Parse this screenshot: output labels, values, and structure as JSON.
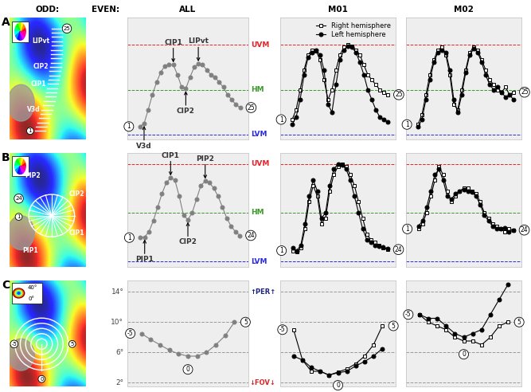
{
  "headers": [
    "ODD:",
    "EVEN:"
  ],
  "maps": [
    {
      "row": "A",
      "labels": [
        "V3d",
        "CIP1",
        "CIP2",
        "LIPvt"
      ],
      "points": [
        "1",
        "25"
      ]
    },
    {
      "row": "B",
      "labels": [
        "PIP2",
        "CIP2",
        "CIP1",
        "PIP1"
      ],
      "points": [
        "1",
        "24"
      ]
    },
    {
      "row": "C",
      "labels": [
        "40°",
        "0°"
      ],
      "points": [
        "-5",
        "0",
        "5"
      ]
    }
  ],
  "chart_data": [
    {
      "type": "line",
      "row": "A",
      "column": "ALL",
      "x": [
        1,
        2,
        3,
        4,
        5,
        6,
        7,
        8,
        9,
        10,
        11,
        12,
        13,
        14,
        15,
        16,
        17,
        18,
        19,
        20,
        21,
        22,
        23,
        24,
        25
      ],
      "xlim": [
        -2,
        27
      ],
      "ylim": [
        -100,
        145
      ],
      "tick_labels": false,
      "reference_lines": [
        {
          "value": 90,
          "label": "UVM",
          "color": "#e8222a"
        },
        {
          "value": 0,
          "label": "HM",
          "color": "#3a9a2a"
        },
        {
          "value": -90,
          "label": "LVM",
          "color": "#2a2ae0"
        }
      ],
      "series": [
        {
          "color": "#808080",
          "marker": "filled_circle",
          "line_style": "solid",
          "values": [
            -74,
            -68,
            -40,
            -10,
            15,
            35,
            48,
            50,
            50,
            30,
            5,
            2,
            25,
            45,
            52,
            50,
            40,
            30,
            25,
            15,
            5,
            -10,
            -20,
            -30,
            -36
          ]
        }
      ],
      "point_labels": [
        {
          "x": 1,
          "label": "1"
        },
        {
          "x": 25,
          "label": "25"
        }
      ],
      "annotations": [
        {
          "x": 2,
          "text": "V3d",
          "side": "below"
        },
        {
          "x": 9,
          "text": "CIP1",
          "side": "above"
        },
        {
          "x": 12,
          "text": "CIP2",
          "side": "below"
        },
        {
          "x": 15,
          "text": "LIPvt",
          "side": "above"
        }
      ]
    },
    {
      "type": "line",
      "row": "A",
      "column": "M01",
      "x": [
        1,
        2,
        3,
        4,
        5,
        6,
        7,
        8,
        9,
        10,
        11,
        12,
        13,
        14,
        15,
        16,
        17,
        18,
        19,
        20,
        21,
        22,
        23,
        24,
        25
      ],
      "xlim": [
        -2,
        27
      ],
      "ylim": [
        -100,
        145
      ],
      "tick_labels": false,
      "legend": "upper right",
      "reference_lines": [
        {
          "value": 90,
          "color": "#e8222a"
        },
        {
          "value": 0,
          "color": "#3a9a2a"
        },
        {
          "value": -90,
          "color": "#2a2ae0"
        }
      ],
      "series": [
        {
          "name": "Right hemisphere",
          "color": "#000000",
          "marker": "open_square",
          "line_style": "solid",
          "values": [
            -60,
            -40,
            0,
            40,
            70,
            80,
            78,
            60,
            20,
            -20,
            0,
            40,
            70,
            85,
            90,
            88,
            80,
            70,
            50,
            30,
            20,
            10,
            0,
            -5,
            -10
          ]
        },
        {
          "name": "Left hemisphere",
          "color": "#000000",
          "marker": "filled_circle",
          "line_style": "solid",
          "values": [
            -70,
            -55,
            -20,
            30,
            65,
            75,
            80,
            70,
            40,
            -30,
            -45,
            10,
            60,
            80,
            88,
            85,
            75,
            55,
            30,
            0,
            -20,
            -40,
            -55,
            -60,
            -65
          ]
        }
      ],
      "point_labels": [
        {
          "x": 1,
          "label": "1"
        },
        {
          "x": 25,
          "label": "25"
        }
      ]
    },
    {
      "type": "line",
      "row": "A",
      "column": "M02",
      "x": [
        1,
        2,
        3,
        4,
        5,
        6,
        7,
        8,
        9,
        10,
        11,
        12,
        13,
        14,
        15,
        16,
        17,
        18,
        19,
        20,
        21,
        22,
        23,
        24,
        25
      ],
      "xlim": [
        -2,
        27
      ],
      "ylim": [
        -100,
        145
      ],
      "tick_labels": false,
      "reference_lines": [
        {
          "value": 90,
          "color": "#e8222a"
        },
        {
          "value": 0,
          "color": "#3a9a2a"
        },
        {
          "value": -90,
          "color": "#2a2ae0"
        }
      ],
      "series": [
        {
          "color": "#000000",
          "marker": "open_square",
          "line_style": "solid",
          "values": [
            -70,
            -50,
            -10,
            30,
            60,
            80,
            85,
            70,
            30,
            -30,
            -40,
            0,
            40,
            75,
            85,
            80,
            60,
            40,
            20,
            10,
            0,
            -5,
            5,
            -10,
            -5
          ]
        },
        {
          "color": "#000000",
          "marker": "filled_circle",
          "line_style": "solid",
          "values": [
            -75,
            -60,
            -20,
            20,
            55,
            75,
            80,
            75,
            40,
            -20,
            -45,
            -10,
            35,
            70,
            82,
            75,
            55,
            30,
            10,
            0,
            5,
            -5,
            -15,
            -10,
            -20
          ]
        }
      ],
      "point_labels": [
        {
          "x": 1,
          "label": "1"
        },
        {
          "x": 25,
          "label": "25"
        }
      ]
    },
    {
      "type": "line",
      "row": "B",
      "column": "ALL",
      "x": [
        1,
        2,
        3,
        4,
        5,
        6,
        7,
        8,
        9,
        10,
        11,
        12,
        13,
        14,
        15,
        16,
        17,
        18,
        19,
        20,
        21,
        22,
        23,
        24
      ],
      "xlim": [
        -2,
        26
      ],
      "ylim": [
        -100,
        110
      ],
      "tick_labels": false,
      "reference_lines": [
        {
          "value": 90,
          "label": "UVM",
          "color": "#e8222a"
        },
        {
          "value": 0,
          "label": "HM",
          "color": "#3a9a2a"
        },
        {
          "value": -90,
          "label": "LVM",
          "color": "#2a2ae0"
        }
      ],
      "series": [
        {
          "color": "#808080",
          "marker": "filled_circle",
          "line_style": "solid",
          "values": [
            -46,
            -45,
            -35,
            -15,
            10,
            35,
            55,
            64,
            60,
            30,
            -5,
            -13,
            0,
            25,
            50,
            58,
            55,
            45,
            30,
            10,
            -10,
            -25,
            -35,
            -42
          ]
        }
      ],
      "point_labels": [
        {
          "x": 1,
          "label": "1"
        },
        {
          "x": 24,
          "label": "24"
        }
      ],
      "annotations": [
        {
          "x": 2,
          "text": "PIP1",
          "side": "below"
        },
        {
          "x": 8,
          "text": "CIP1",
          "side": "above"
        },
        {
          "x": 12,
          "text": "CIP2",
          "side": "below"
        },
        {
          "x": 16,
          "text": "PIP2",
          "side": "above"
        }
      ]
    },
    {
      "type": "line",
      "row": "B",
      "column": "M01",
      "x": [
        1,
        2,
        3,
        4,
        5,
        6,
        7,
        8,
        9,
        10,
        11,
        12,
        13,
        14,
        15,
        16,
        17,
        18,
        19,
        20,
        21,
        22,
        23,
        24
      ],
      "xlim": [
        -2,
        26
      ],
      "ylim": [
        -100,
        110
      ],
      "tick_labels": false,
      "reference_lines": [
        {
          "value": 90,
          "color": "#e8222a"
        },
        {
          "value": 0,
          "color": "#3a9a2a"
        },
        {
          "value": -90,
          "color": "#2a2ae0"
        }
      ],
      "series": [
        {
          "color": "#000000",
          "marker": "open_square",
          "line_style": "solid",
          "values": [
            -70,
            -72,
            -65,
            -30,
            20,
            50,
            30,
            -20,
            -10,
            40,
            70,
            85,
            90,
            85,
            70,
            50,
            20,
            -10,
            -40,
            -50,
            -55,
            -60,
            -65,
            -68
          ]
        },
        {
          "color": "#000000",
          "marker": "filled_circle",
          "line_style": "solid",
          "values": [
            -65,
            -70,
            -60,
            -20,
            30,
            60,
            40,
            -10,
            0,
            50,
            80,
            90,
            88,
            80,
            60,
            30,
            0,
            -30,
            -50,
            -55,
            -60,
            -62,
            -64,
            -66
          ]
        }
      ],
      "point_labels": [
        {
          "x": 1,
          "label": "1"
        },
        {
          "x": 24,
          "label": "24"
        }
      ]
    },
    {
      "type": "line",
      "row": "B",
      "column": "M02",
      "x": [
        1,
        2,
        3,
        4,
        5,
        6,
        7,
        8,
        9,
        10,
        11,
        12,
        13,
        14,
        15,
        16,
        17,
        18,
        19,
        20,
        21,
        22,
        23,
        24
      ],
      "xlim": [
        -2,
        26
      ],
      "ylim": [
        -100,
        110
      ],
      "tick_labels": false,
      "reference_lines": [
        {
          "value": 90,
          "color": "#e8222a"
        },
        {
          "value": 0,
          "color": "#3a9a2a"
        },
        {
          "value": -90,
          "color": "#2a2ae0"
        }
      ],
      "series": [
        {
          "color": "#000000",
          "marker": "open_square",
          "line_style": "solid",
          "values": [
            -30,
            -20,
            0,
            30,
            60,
            85,
            70,
            40,
            20,
            30,
            40,
            45,
            45,
            40,
            35,
            20,
            0,
            -10,
            -20,
            -25,
            -30,
            -35,
            -30,
            -32
          ]
        },
        {
          "color": "#000000",
          "marker": "filled_circle",
          "line_style": "solid",
          "values": [
            -25,
            -15,
            10,
            40,
            70,
            80,
            60,
            30,
            25,
            35,
            40,
            42,
            40,
            38,
            30,
            15,
            -5,
            -15,
            -25,
            -30,
            -30,
            -28,
            -35,
            -33
          ]
        }
      ],
      "point_labels": [
        {
          "x": 1,
          "label": "1"
        },
        {
          "x": 24,
          "label": "24"
        }
      ]
    },
    {
      "type": "line",
      "row": "C",
      "column": "ALL",
      "x": [
        -5,
        -4,
        -3,
        -2,
        -1,
        0,
        1,
        2,
        3,
        4,
        5
      ],
      "xlim": [
        -6.5,
        6.5
      ],
      "ylim": [
        1.5,
        15.5
      ],
      "tick_labels": false,
      "reference_lines": [
        {
          "value": 14,
          "label": "14°",
          "color": "#9a9a9a"
        },
        {
          "value": 10,
          "label": "10°",
          "color": "#9a9a9a"
        },
        {
          "value": 6,
          "label": "6°",
          "color": "#9a9a9a"
        },
        {
          "value": 2,
          "label": "2°",
          "color": "#9a9a9a"
        }
      ],
      "axis_notes": [
        {
          "text": "↑PER↑",
          "y": 14,
          "color": "#1a237e"
        },
        {
          "text": "↓FOV↓",
          "y": 2,
          "color": "#d62728"
        }
      ],
      "series": [
        {
          "color": "#808080",
          "marker": "filled_circle",
          "line_style": "solid",
          "values": [
            8.5,
            7.7,
            7,
            6.3,
            5.8,
            5.5,
            5.5,
            6,
            7,
            8.2,
            10
          ]
        }
      ],
      "point_labels": [
        {
          "x": -5,
          "label": "-5"
        },
        {
          "x": 0,
          "label": "0"
        },
        {
          "x": 5,
          "label": "5"
        }
      ]
    },
    {
      "type": "line",
      "row": "C",
      "column": "M01",
      "x": [
        -5,
        -4,
        -3,
        -2,
        -1,
        0,
        1,
        2,
        3,
        4,
        5
      ],
      "xlim": [
        -6.5,
        6.5
      ],
      "ylim": [
        1.5,
        15.5
      ],
      "tick_labels": false,
      "reference_lines": [
        {
          "value": 14,
          "color": "#9a9a9a"
        },
        {
          "value": 10,
          "color": "#9a9a9a"
        },
        {
          "value": 6,
          "color": "#9a9a9a"
        },
        {
          "value": 2,
          "color": "#9a9a9a"
        }
      ],
      "series": [
        {
          "color": "#000000",
          "marker": "open_square",
          "line_style": "solid",
          "values": [
            9,
            5,
            3.5,
            3.5,
            3,
            3.4,
            3.8,
            4.5,
            5.5,
            7,
            9.5
          ]
        },
        {
          "color": "#000000",
          "marker": "filled_circle",
          "line_style": "solid",
          "values": [
            5.5,
            5,
            4,
            3.5,
            3,
            3.3,
            3.5,
            4.2,
            4.8,
            5.5,
            6.5
          ]
        }
      ],
      "point_labels": [
        {
          "x": -5,
          "label": "-5"
        },
        {
          "x": 0,
          "label": "0"
        },
        {
          "x": 5,
          "label": "5"
        }
      ]
    },
    {
      "type": "line",
      "row": "C",
      "column": "M02",
      "x": [
        -5,
        -4,
        -3,
        -2,
        -1,
        0,
        1,
        2,
        3,
        4,
        5
      ],
      "xlim": [
        -6.5,
        6.5
      ],
      "ylim": [
        1.5,
        15.5
      ],
      "tick_labels": false,
      "reference_lines": [
        {
          "value": 14,
          "color": "#9a9a9a"
        },
        {
          "value": 10,
          "color": "#9a9a9a"
        },
        {
          "value": 6,
          "color": "#9a9a9a"
        },
        {
          "value": 2,
          "color": "#9a9a9a"
        }
      ],
      "series": [
        {
          "color": "#000000",
          "marker": "open_square",
          "line_style": "solid",
          "values": [
            11,
            10,
            9.5,
            9,
            8,
            7.5,
            7.5,
            7,
            8,
            9.5,
            10
          ]
        },
        {
          "color": "#000000",
          "marker": "filled_circle",
          "line_style": "solid",
          "values": [
            11,
            10.5,
            10.5,
            9.5,
            8.5,
            8,
            8.5,
            9,
            11,
            13,
            15
          ]
        }
      ],
      "point_labels": [
        {
          "x": -5,
          "label": "-5"
        },
        {
          "x": 0,
          "label": "0"
        },
        {
          "x": 5,
          "label": "5"
        }
      ]
    }
  ]
}
